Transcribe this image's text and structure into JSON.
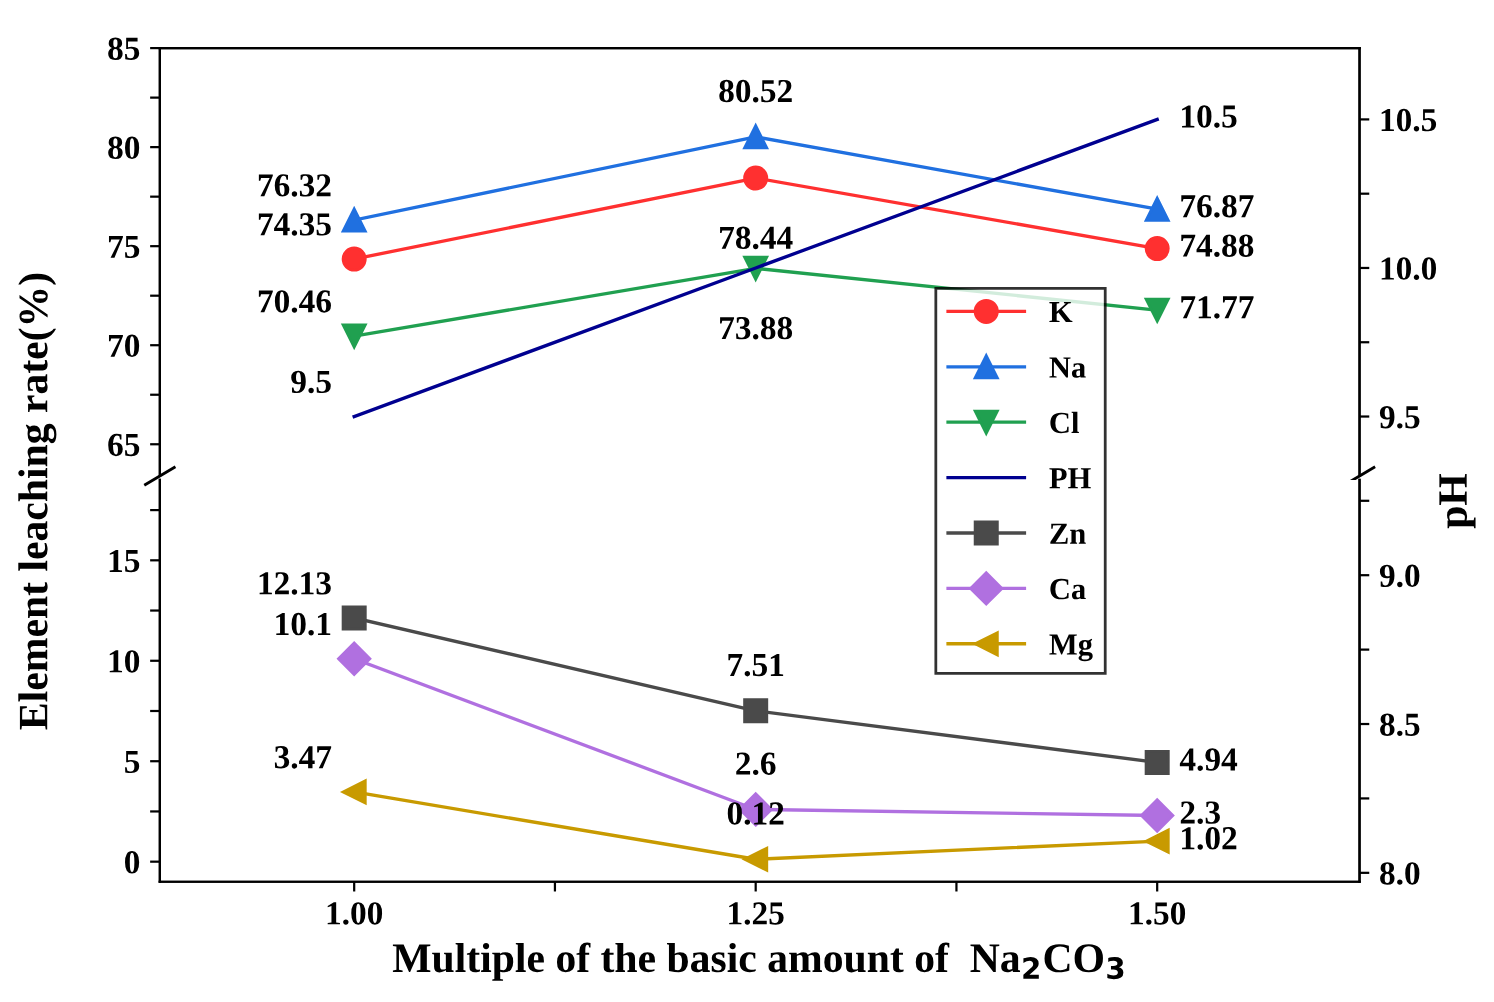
{
  "chart_data": [
    {
      "type": "line",
      "ylabel": "Element leaching rate(%)",
      "y2label": "pH",
      "x": [
        1.0,
        1.25,
        1.5
      ],
      "xlim": [
        0.879,
        1.626
      ],
      "ylim": [
        63.4,
        85
      ],
      "yticks": [
        65,
        {
          "value": 67.5,
          "label": null
        },
        70,
        {
          "value": 72.5,
          "label": null
        },
        75,
        {
          "value": 77.5,
          "label": null
        },
        80,
        {
          "value": 82.5,
          "label": null
        },
        85
      ],
      "y2lim": [
        9.3,
        10.74
      ],
      "y2ticks": [
        9.5,
        {
          "value": 9.75,
          "label": null
        },
        {
          "value": 10.0,
          "label": "10.0"
        },
        {
          "value": 10.25,
          "label": null
        },
        10.5
      ],
      "tick_labels": "y",
      "grid": false,
      "legend": "right",
      "series": [
        {
          "name": "K",
          "color": "#ff3030",
          "marker": "circle",
          "values": [
            74.35,
            78.44,
            74.88
          ],
          "data_labels": true
        },
        {
          "name": "Na",
          "color": "#2070e0",
          "marker": "triangle",
          "values": [
            76.32,
            80.52,
            76.87
          ],
          "data_labels": true
        },
        {
          "name": "Cl",
          "color": "#20a050",
          "marker": "triangle_down",
          "values": [
            70.46,
            73.88,
            71.77
          ],
          "data_labels": true
        },
        {
          "name": "PH",
          "color": "#000090",
          "marker": "none",
          "axis": "y2",
          "values": [
            9.5,
            10.0,
            10.5
          ],
          "value_labels": [
            "9.5",
            null,
            "10.5"
          ]
        }
      ]
    },
    {
      "type": "line",
      "xlabel": "Multiple of the basic amount of  Na$_{2}$CO$_{3}$",
      "x": [
        1.0,
        1.25,
        1.5
      ],
      "xlim": [
        0.879,
        1.626
      ],
      "xticks": [
        {
          "value": 1.0,
          "label": "1.00"
        },
        {
          "value": 1.125,
          "label": null
        },
        {
          "value": 1.25,
          "label": "1.25"
        },
        {
          "value": 1.375,
          "label": null
        },
        {
          "value": 1.5,
          "label": "1.50"
        }
      ],
      "ylim": [
        -1.0,
        19
      ],
      "yticks": [
        0,
        {
          "value": 2.5,
          "label": null
        },
        5,
        {
          "value": 7.5,
          "label": null
        },
        10,
        {
          "value": 12.5,
          "label": null
        },
        15,
        {
          "value": 17.5,
          "label": null
        }
      ],
      "y2lim": [
        7.97,
        9.32
      ],
      "y2ticks": [
        {
          "value": 8.0,
          "label": "8.0"
        },
        {
          "value": 8.25,
          "label": null
        },
        8.5,
        {
          "value": 8.75,
          "label": null
        },
        {
          "value": 9.0,
          "label": "9.0"
        },
        {
          "value": 9.25,
          "label": null
        }
      ],
      "grid": false,
      "legend": "right",
      "series": [
        {
          "name": "Zn",
          "color": "#4a4a4a",
          "marker": "square",
          "values": [
            12.13,
            7.51,
            4.94
          ],
          "data_labels": true
        },
        {
          "name": "Ca",
          "color": "#b070e0",
          "marker": "diamond",
          "values": [
            10.1,
            2.6,
            2.3
          ],
          "data_labels": true
        },
        {
          "name": "Mg",
          "color": "#c89a00",
          "marker": "triangle_left",
          "values": [
            3.47,
            0.12,
            1.02
          ],
          "data_labels": true
        }
      ]
    }
  ]
}
